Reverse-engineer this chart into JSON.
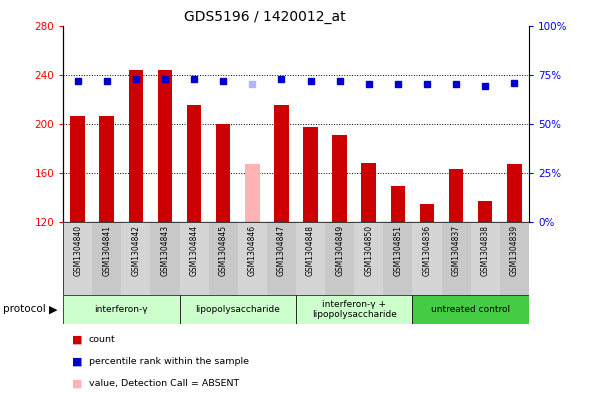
{
  "title": "GDS5196 / 1420012_at",
  "samples": [
    "GSM1304840",
    "GSM1304841",
    "GSM1304842",
    "GSM1304843",
    "GSM1304844",
    "GSM1304845",
    "GSM1304846",
    "GSM1304847",
    "GSM1304848",
    "GSM1304849",
    "GSM1304850",
    "GSM1304851",
    "GSM1304836",
    "GSM1304837",
    "GSM1304838",
    "GSM1304839"
  ],
  "bar_values": [
    206,
    206,
    244,
    244,
    215,
    200,
    167,
    215,
    197,
    191,
    168,
    149,
    135,
    163,
    137,
    167
  ],
  "bar_absent": [
    false,
    false,
    false,
    false,
    false,
    false,
    true,
    false,
    false,
    false,
    false,
    false,
    false,
    false,
    false,
    false
  ],
  "rank_values": [
    72,
    72,
    73,
    73,
    73,
    72,
    70,
    73,
    72,
    72,
    70,
    70,
    70,
    70,
    69,
    71
  ],
  "rank_absent": [
    false,
    false,
    false,
    false,
    false,
    false,
    true,
    false,
    false,
    false,
    false,
    false,
    false,
    false,
    false,
    false
  ],
  "bar_color_normal": "#cc0000",
  "bar_color_absent": "#ffb3b3",
  "rank_color_normal": "#0000cc",
  "rank_color_absent": "#b3b3ff",
  "ylim_left": [
    120,
    280
  ],
  "ylim_right": [
    0,
    100
  ],
  "yticks_left": [
    120,
    160,
    200,
    240,
    280
  ],
  "yticks_right": [
    0,
    25,
    50,
    75,
    100
  ],
  "yticklabels_right": [
    "0%",
    "25%",
    "50%",
    "75%",
    "100%"
  ],
  "groups": [
    {
      "label": "interferon-γ",
      "start": 0,
      "end": 4,
      "color": "#ccffcc"
    },
    {
      "label": "lipopolysaccharide",
      "start": 4,
      "end": 8,
      "color": "#ccffcc"
    },
    {
      "label": "interferon-γ +\nlipopolysaccharide",
      "start": 8,
      "end": 12,
      "color": "#ccffcc"
    },
    {
      "label": "untreated control",
      "start": 12,
      "end": 16,
      "color": "#44cc44"
    }
  ],
  "bar_width": 0.5,
  "rank_marker_size": 5,
  "background_color": "#ffffff",
  "plot_bg_color": "#ffffff",
  "title_fontsize": 10,
  "tick_fontsize": 7.5,
  "label_fontsize": 7
}
